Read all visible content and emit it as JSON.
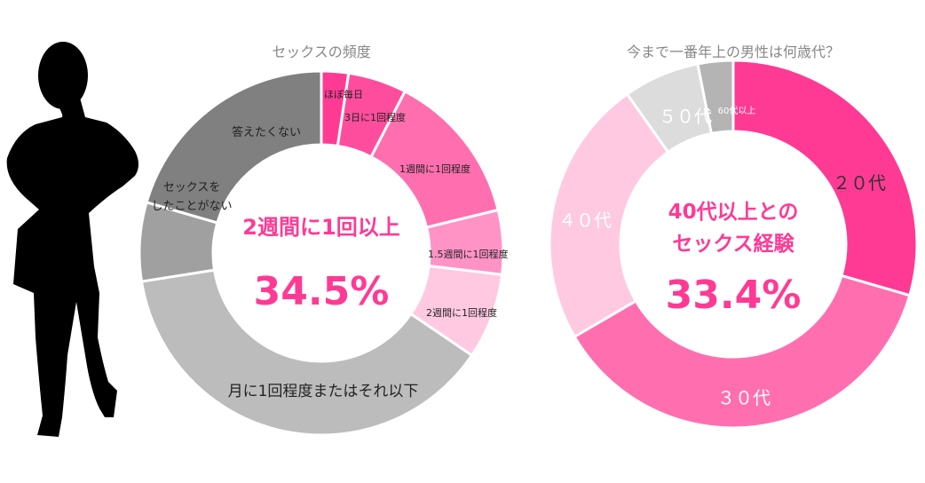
{
  "colors": {
    "hot_pink": "#ff3a94",
    "pink": "#ff6fb0",
    "light_pink": "#ff93c6",
    "pale_pink": "#ffc9e2",
    "pink_4": "#ffbfdc",
    "gray_dark": "#808080",
    "gray_mid": "#a0a0a0",
    "gray_light": "#bcbcbc",
    "gray_pale": "#dcdcdc",
    "silhouette": "#000000",
    "center_text": "#ff3a94"
  },
  "icons": {
    "silhouette": "woman-silhouette-icon"
  },
  "chart_data": [
    {
      "type": "pie",
      "title": "セックスの頻度",
      "center": {
        "line1": "2週間に1回以上",
        "value": "34.5%"
      },
      "slices": [
        {
          "label": "ほぼ毎日",
          "value": 2.4,
          "color": "#ff3a94"
        },
        {
          "label": "3日に1回程度",
          "value": 5.2,
          "color": "#ff4d9e"
        },
        {
          "label": "1週間に1回程度",
          "value": 13.6,
          "color": "#ff6fb0"
        },
        {
          "label": "1.5週間に1回程度",
          "value": 5.7,
          "color": "#ff93c6"
        },
        {
          "label": "2週間に1回程度",
          "value": 7.6,
          "color": "#ffc9e2"
        },
        {
          "label": "月に1回程度またはそれ以下",
          "value": 38.0,
          "color": "#bcbcbc"
        },
        {
          "label": "セックスを\nしたことがない",
          "value": 7.0,
          "color": "#a0a0a0"
        },
        {
          "label": "答えたくない",
          "value": 20.5,
          "color": "#808080"
        }
      ]
    },
    {
      "type": "pie",
      "title": "今まで一番年上の男性は何歳代？",
      "center": {
        "line1": "40代以上との",
        "line2": "セックス経験",
        "value": "33.4%"
      },
      "slices": [
        {
          "label": "２０代",
          "value": 29.5,
          "color": "#ff3a94"
        },
        {
          "label": "３０代",
          "value": 37.1,
          "color": "#ff6fb0"
        },
        {
          "label": "４０代",
          "value": 23.6,
          "color": "#ffc9e2"
        },
        {
          "label": "５０代",
          "value": 6.7,
          "color": "#dcdcdc"
        },
        {
          "label": "60代以上",
          "value": 3.1,
          "color": "#b4b4b4"
        }
      ]
    }
  ]
}
